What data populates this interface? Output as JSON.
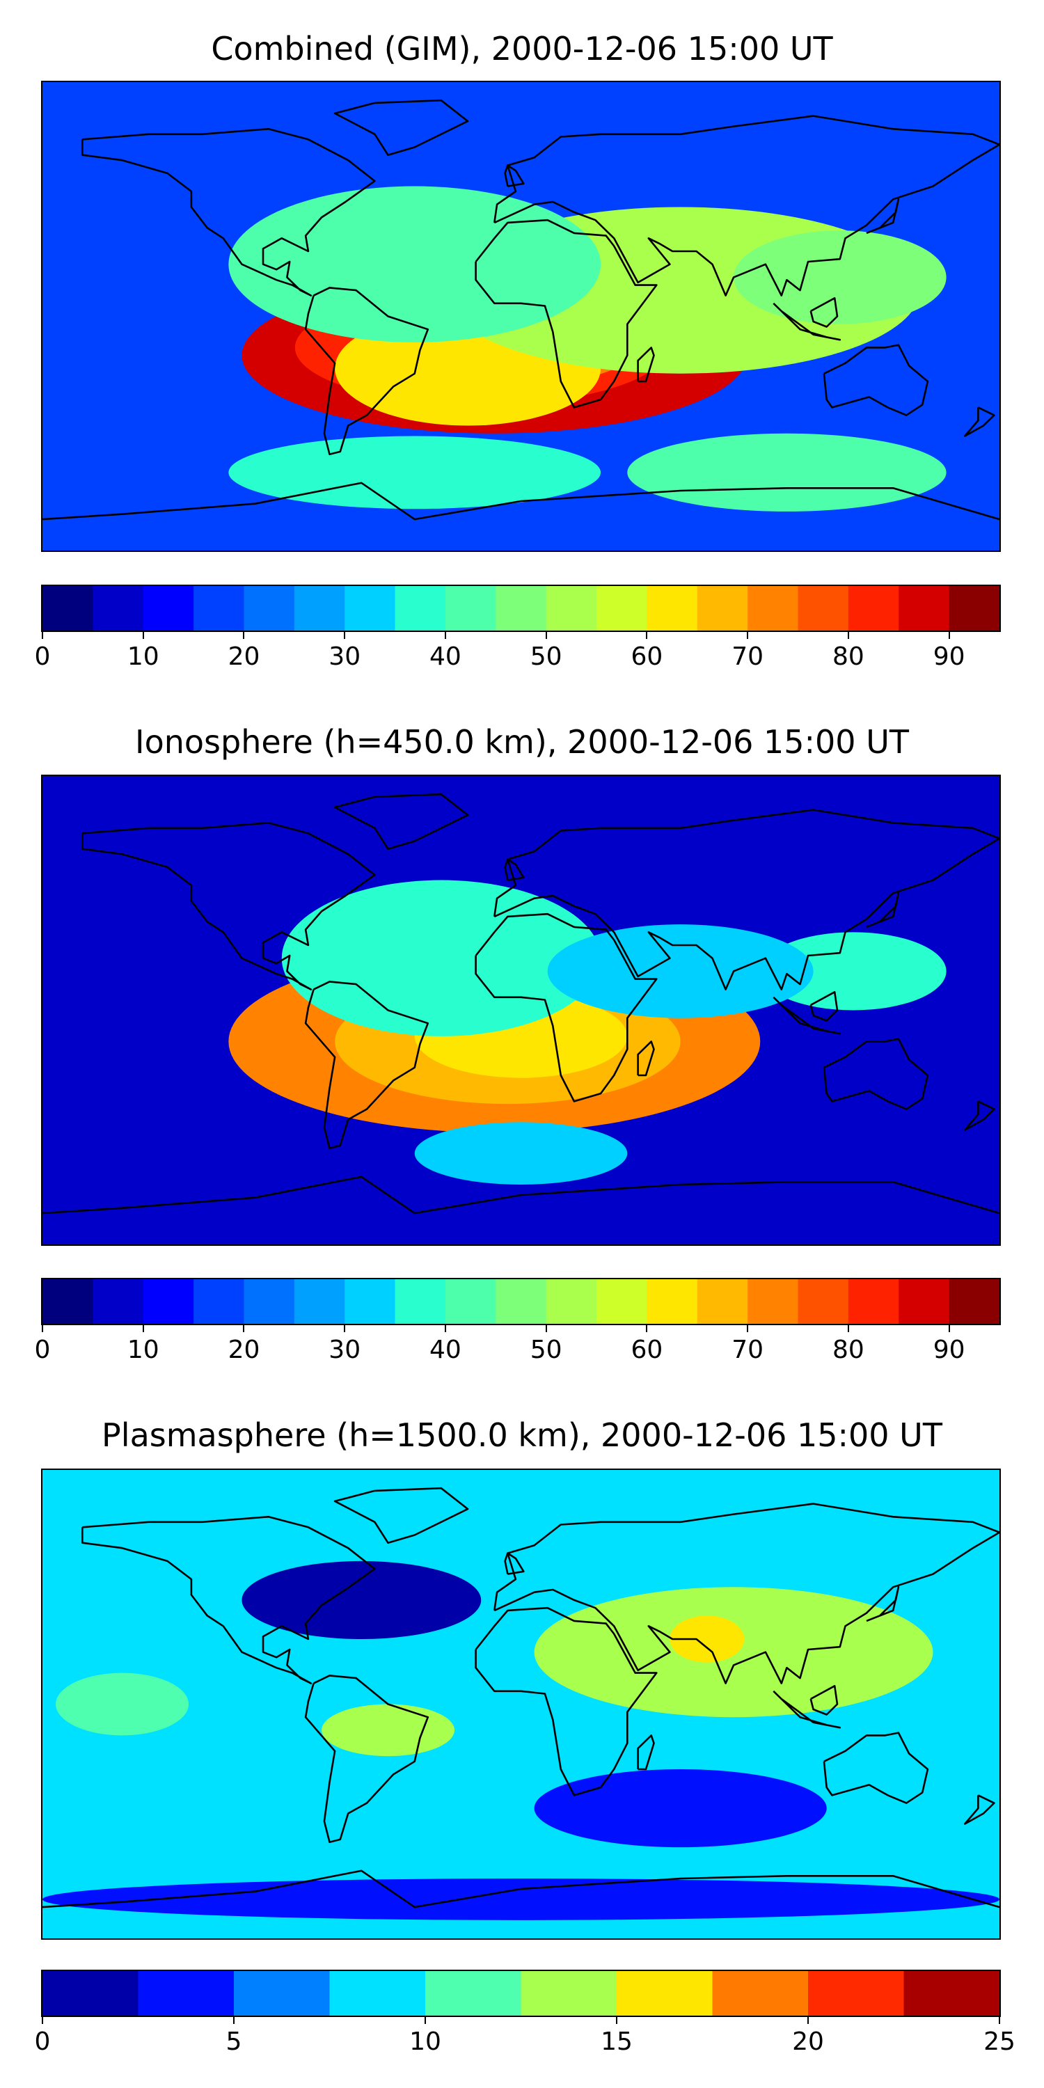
{
  "figure": {
    "panels": [
      {
        "id": "combined",
        "title": "Combined (GIM), 2000-12-06 15:00 UT",
        "colorbar": {
          "min": 0,
          "max": 95,
          "levels": [
            0,
            5,
            10,
            15,
            20,
            25,
            30,
            35,
            40,
            45,
            50,
            55,
            60,
            65,
            70,
            75,
            80,
            85,
            90,
            95
          ],
          "tick_values": [
            0,
            10,
            20,
            30,
            40,
            50,
            60,
            70,
            80,
            90
          ],
          "tick_labels": [
            "0",
            "10",
            "20",
            "30",
            "40",
            "50",
            "60",
            "70",
            "80",
            "90"
          ],
          "colors": [
            "#00007f",
            "#0000c8",
            "#0000ff",
            "#0040ff",
            "#0070ff",
            "#00a0ff",
            "#00d0ff",
            "#29ffce",
            "#4dffaa",
            "#7dff7a",
            "#aaff4d",
            "#ceff29",
            "#ffe600",
            "#ffb900",
            "#ff8200",
            "#ff5200",
            "#ff2200",
            "#d40000",
            "#8a0000"
          ]
        },
        "field": {
          "background": 3,
          "blobs": [
            {
              "lon": -10,
              "lat": -15,
              "rx": 95,
              "ry": 30,
              "level": 17
            },
            {
              "lon": -15,
              "lat": -12,
              "rx": 70,
              "ry": 22,
              "level": 16
            },
            {
              "lon": -5,
              "lat": -10,
              "rx": 50,
              "ry": 17,
              "level": 14
            },
            {
              "lon": -20,
              "lat": -20,
              "rx": 50,
              "ry": 22,
              "level": 12
            },
            {
              "lon": 60,
              "lat": 10,
              "rx": 90,
              "ry": 32,
              "level": 10
            },
            {
              "lon": -40,
              "lat": 20,
              "rx": 70,
              "ry": 30,
              "level": 8
            },
            {
              "lon": 120,
              "lat": 15,
              "rx": 40,
              "ry": 18,
              "level": 9
            },
            {
              "lon": 100,
              "lat": -60,
              "rx": 60,
              "ry": 15,
              "level": 8
            },
            {
              "lon": -40,
              "lat": -60,
              "rx": 70,
              "ry": 14,
              "level": 7
            }
          ]
        }
      },
      {
        "id": "ionosphere",
        "title": "Ionosphere  (h=450.0 km), 2000-12-06 15:00 UT",
        "colorbar": {
          "min": 0,
          "max": 95,
          "levels": [
            0,
            5,
            10,
            15,
            20,
            25,
            30,
            35,
            40,
            45,
            50,
            55,
            60,
            65,
            70,
            75,
            80,
            85,
            90,
            95
          ],
          "tick_values": [
            0,
            10,
            20,
            30,
            40,
            50,
            60,
            70,
            80,
            90
          ],
          "tick_labels": [
            "0",
            "10",
            "20",
            "30",
            "40",
            "50",
            "60",
            "70",
            "80",
            "90"
          ],
          "colors": [
            "#00007f",
            "#0000c8",
            "#0000ff",
            "#0040ff",
            "#0070ff",
            "#00a0ff",
            "#00d0ff",
            "#29ffce",
            "#4dffaa",
            "#7dff7a",
            "#aaff4d",
            "#ceff29",
            "#ffe600",
            "#ffb900",
            "#ff8200",
            "#ff5200",
            "#ff2200",
            "#d40000",
            "#8a0000"
          ]
        },
        "field": {
          "background": 1,
          "blobs": [
            {
              "lon": -10,
              "lat": -12,
              "rx": 100,
              "ry": 35,
              "level": 14
            },
            {
              "lon": -5,
              "lat": -12,
              "rx": 65,
              "ry": 24,
              "level": 13
            },
            {
              "lon": 0,
              "lat": -10,
              "rx": 40,
              "ry": 16,
              "level": 12
            },
            {
              "lon": -30,
              "lat": 20,
              "rx": 60,
              "ry": 30,
              "level": 7
            },
            {
              "lon": 125,
              "lat": 15,
              "rx": 35,
              "ry": 15,
              "level": 7
            },
            {
              "lon": 60,
              "lat": 15,
              "rx": 50,
              "ry": 18,
              "level": 6
            },
            {
              "lon": 0,
              "lat": -55,
              "rx": 40,
              "ry": 12,
              "level": 6
            }
          ]
        }
      },
      {
        "id": "plasmasphere",
        "title": "Plasmasphere (h=1500.0 km), 2000-12-06 15:00 UT",
        "colorbar": {
          "min": 0,
          "max": 25,
          "levels": [
            0,
            2.5,
            5,
            7.5,
            10,
            12.5,
            15,
            17.5,
            20,
            22.5,
            25
          ],
          "tick_values": [
            0,
            5,
            10,
            15,
            20,
            25
          ],
          "tick_labels": [
            "0",
            "5",
            "10",
            "15",
            "20",
            "25"
          ],
          "colors": [
            "#0000a8",
            "#0010ff",
            "#0080ff",
            "#00e0ff",
            "#4effb0",
            "#a8ff4e",
            "#ffe600",
            "#ff7a00",
            "#ff2a00",
            "#a80000"
          ]
        },
        "field": {
          "background": 3,
          "blobs": [
            {
              "lon": 80,
              "lat": 20,
              "rx": 75,
              "ry": 25,
              "level": 5
            },
            {
              "lon": 70,
              "lat": 25,
              "rx": 14,
              "ry": 9,
              "level": 6
            },
            {
              "lon": -50,
              "lat": -10,
              "rx": 25,
              "ry": 10,
              "level": 5
            },
            {
              "lon": -150,
              "lat": 0,
              "rx": 25,
              "ry": 12,
              "level": 4
            },
            {
              "lon": -60,
              "lat": 40,
              "rx": 45,
              "ry": 15,
              "level": 0
            },
            {
              "lon": 60,
              "lat": -40,
              "rx": 55,
              "ry": 15,
              "level": 1
            },
            {
              "lon": 0,
              "lat": -75,
              "rx": 180,
              "ry": 8,
              "level": 1
            }
          ]
        }
      }
    ],
    "coastline_color": "#000000"
  }
}
